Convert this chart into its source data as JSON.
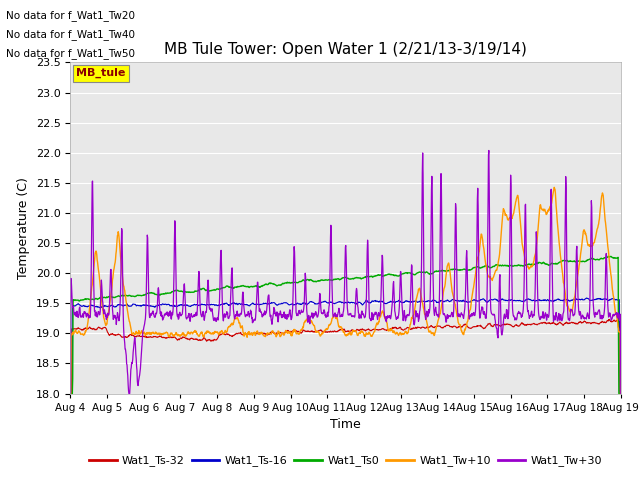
{
  "title": "MB Tule Tower: Open Water 1 (2/21/13-3/19/14)",
  "xlabel": "Time",
  "ylabel": "Temperature (C)",
  "ylim": [
    18.0,
    23.5
  ],
  "yticks": [
    18.0,
    18.5,
    19.0,
    19.5,
    20.0,
    20.5,
    21.0,
    21.5,
    22.0,
    22.5,
    23.0,
    23.5
  ],
  "xtick_labels": [
    "Aug 4",
    "Aug 5",
    "Aug 6",
    "Aug 7",
    "Aug 8",
    "Aug 9",
    "Aug 10",
    "Aug 11",
    "Aug 12",
    "Aug 13",
    "Aug 14",
    "Aug 15",
    "Aug 16",
    "Aug 17",
    "Aug 18",
    "Aug 19"
  ],
  "plot_bg": "#e8e8e8",
  "no_data_lines": [
    "No data for f_Wat1_Tw20",
    "No data for f_Wat1_Tw40",
    "No data for f_Wat1_Tw50"
  ],
  "legend_label": "MB_tule",
  "series": {
    "Wat1_Ts-32": {
      "color": "#cc0000",
      "lw": 0.8
    },
    "Wat1_Ts-16": {
      "color": "#0000cc",
      "lw": 0.8
    },
    "Wat1_Ts0": {
      "color": "#00aa00",
      "lw": 1.0
    },
    "Wat1_Tw+10": {
      "color": "#ff9900",
      "lw": 1.0
    },
    "Wat1_Tw+30": {
      "color": "#9900cc",
      "lw": 0.9
    }
  },
  "n_points": 1440,
  "days": 15
}
